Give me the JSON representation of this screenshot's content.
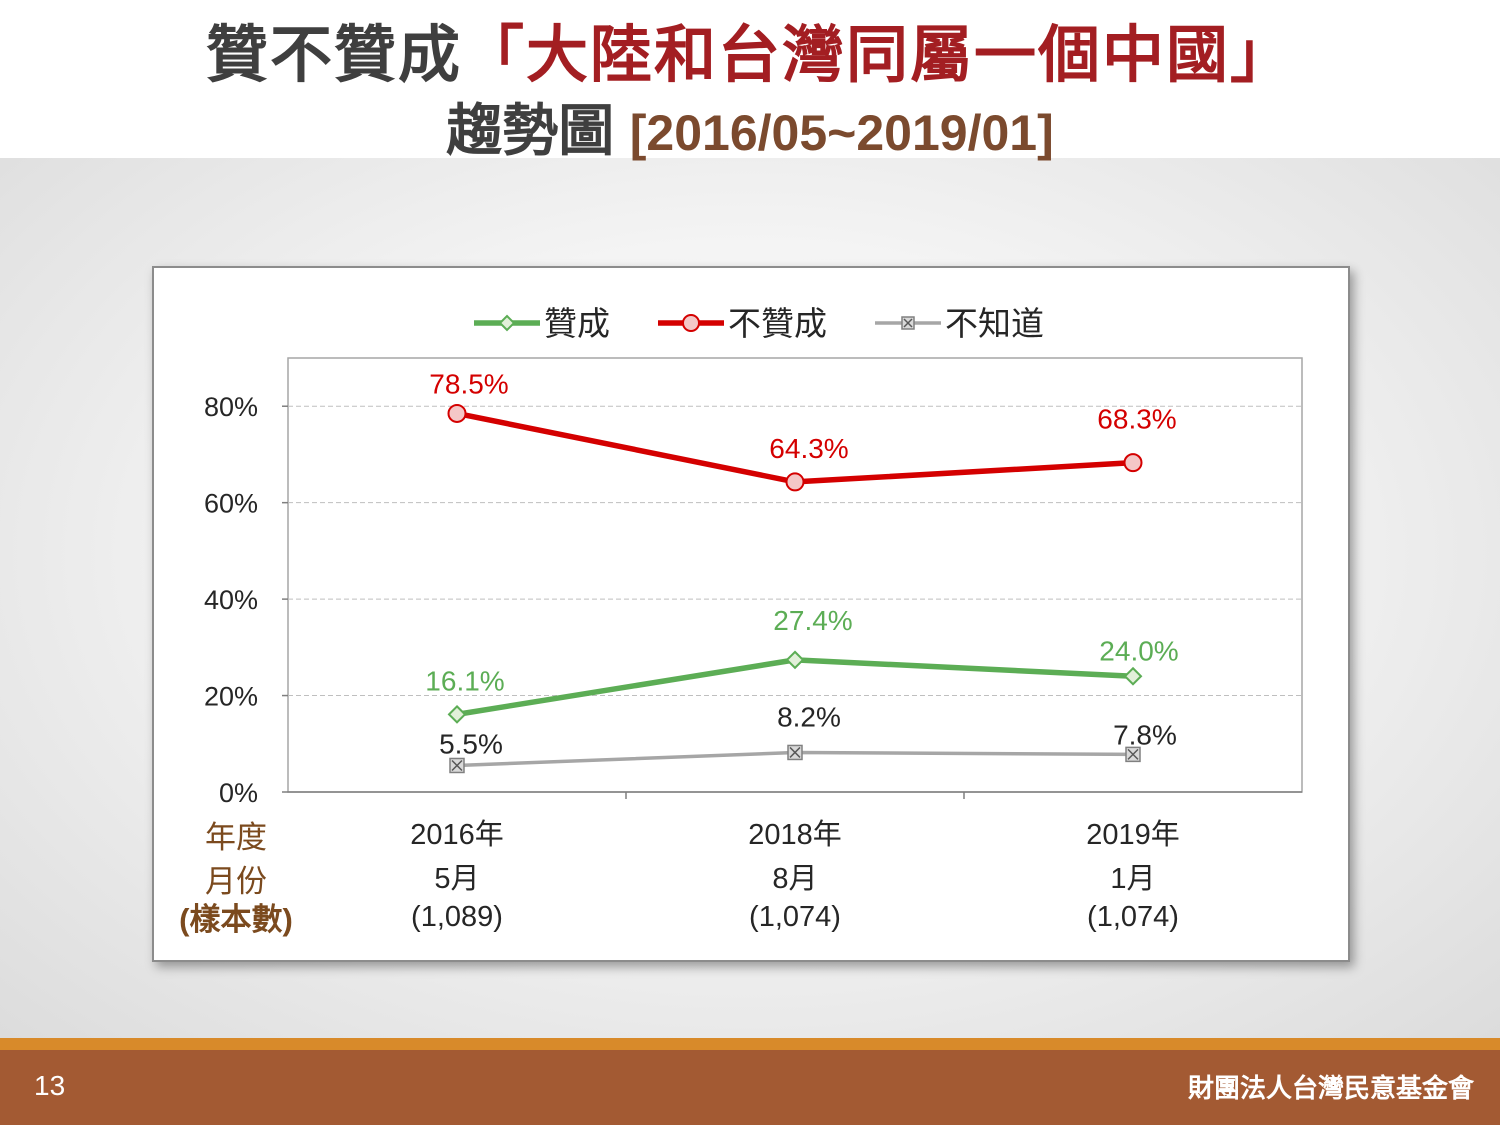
{
  "slide": {
    "title_part1": "贊不贊成",
    "title_accent": "「大陸和台灣同屬一個中國」",
    "title_line2_main": "趨勢圖",
    "title_line2_range": "[2016/05~2019/01]",
    "page_number": "13",
    "organization": "財團法人台灣民意基金會"
  },
  "chart_data": {
    "type": "line",
    "title": "",
    "xlabel": "",
    "ylabel": "",
    "ylim": [
      0,
      90
    ],
    "yticks": [
      "0%",
      "20%",
      "40%",
      "60%",
      "80%"
    ],
    "ytick_values": [
      0,
      20,
      40,
      60,
      80
    ],
    "grid": true,
    "legend_position": "top-center",
    "row_labels": [
      "年度",
      "月份",
      "(樣本數)"
    ],
    "categories": [
      {
        "year": "2016年",
        "month": "5月",
        "sample": "(1,089)"
      },
      {
        "year": "2018年",
        "month": "8月",
        "sample": "(1,074)"
      },
      {
        "year": "2019年",
        "month": "1月",
        "sample": "(1,074)"
      }
    ],
    "series": [
      {
        "name": "贊成",
        "color": "#5cad55",
        "marker": "diamond",
        "values": [
          16.1,
          27.4,
          24.0
        ],
        "labels": [
          "16.1%",
          "27.4%",
          "24.0%"
        ]
      },
      {
        "name": "不贊成",
        "color": "#d40000",
        "marker": "circle",
        "values": [
          78.5,
          64.3,
          68.3
        ],
        "labels": [
          "78.5%",
          "64.3%",
          "68.3%"
        ]
      },
      {
        "name": "不知道",
        "color": "#a6a6a6",
        "marker": "x-square",
        "values": [
          5.5,
          8.2,
          7.8
        ],
        "labels": [
          "5.5%",
          "8.2%",
          "7.8%"
        ]
      }
    ]
  }
}
